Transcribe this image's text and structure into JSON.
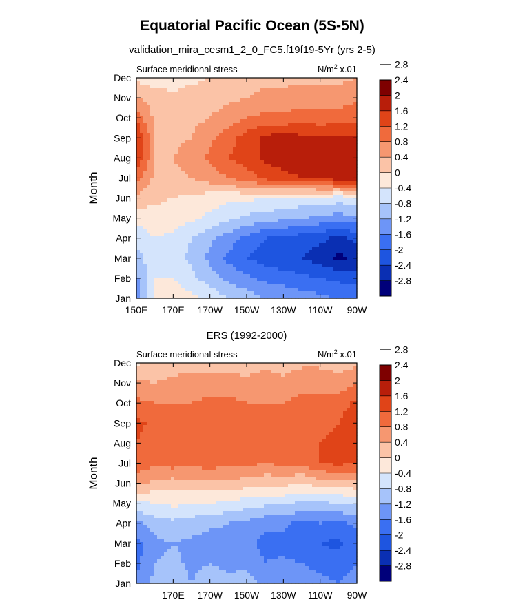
{
  "title": "Equatorial Pacific Ocean (5S-5N)",
  "colors": [
    "#00007a",
    "#0a2fb3",
    "#1e55e0",
    "#3a6ff2",
    "#6d95f7",
    "#a6c3fa",
    "#d4e4fc",
    "#fde8da",
    "#fbc3a7",
    "#f69770",
    "#f06a3c",
    "#e04418",
    "#b81e0a",
    "#7e0000"
  ],
  "colorbar_labels": [
    "-2.8",
    "-2.4",
    "-2",
    "-1.6",
    "-1.2",
    "-0.8",
    "-0.4",
    "0",
    "0.4",
    "0.8",
    "1.2",
    "1.6",
    "2",
    "2.4",
    "2.8"
  ],
  "chart_data": [
    {
      "type": "heatmap",
      "title": "validation_mira_cesm1_2_0_FC5.f19f19-5Yr (yrs 2-5)",
      "left_string": "Surface meridional stress",
      "units_base": "N/m",
      "units_sup": "2",
      "units_suffix": " x.01",
      "ylabel": "Month",
      "xlabel": "",
      "x_tick_labels": [
        "150E",
        "170E",
        "170W",
        "150W",
        "130W",
        "110W",
        "90W"
      ],
      "y_tick_labels": [
        "Jan",
        "Feb",
        "Mar",
        "Apr",
        "May",
        "Jun",
        "Jul",
        "Aug",
        "Sep",
        "Oct",
        "Nov",
        "Dec"
      ],
      "x_longitudes": [
        150,
        160,
        170,
        180,
        190,
        200,
        210,
        220,
        230,
        240,
        250,
        260,
        270
      ],
      "y_months": [
        "Jan",
        "Feb",
        "Mar",
        "Apr",
        "May",
        "Jun",
        "Jul",
        "Aug",
        "Sep",
        "Oct",
        "Nov",
        "Dec"
      ],
      "levels": [
        -2.8,
        -2.4,
        -2.0,
        -1.6,
        -1.2,
        -0.8,
        -0.4,
        0,
        0.4,
        0.8,
        1.2,
        1.6,
        2.0,
        2.4,
        2.8
      ],
      "values": [
        [
          -1.4,
          -0.3,
          -0.2,
          -0.3,
          -0.5,
          -0.8,
          -1.0,
          -1.2,
          -1.3,
          -1.4,
          -1.5,
          -1.6,
          -1.7
        ],
        [
          -1.3,
          -0.4,
          -0.4,
          -0.7,
          -1.0,
          -1.3,
          -1.5,
          -1.7,
          -1.8,
          -1.9,
          -2.0,
          -2.1,
          -2.2
        ],
        [
          -1.0,
          -0.5,
          -0.6,
          -0.9,
          -1.3,
          -1.7,
          -2.0,
          -2.2,
          -2.3,
          -2.4,
          -2.6,
          -2.9,
          -2.7
        ],
        [
          -0.6,
          -0.4,
          -0.5,
          -0.8,
          -1.1,
          -1.4,
          -1.7,
          -2.0,
          -2.1,
          -2.2,
          -2.3,
          -2.5,
          -2.3
        ],
        [
          -0.3,
          -0.2,
          -0.2,
          -0.3,
          -0.5,
          -0.7,
          -0.9,
          -1.0,
          -1.1,
          -1.2,
          -1.3,
          -1.4,
          -1.3
        ],
        [
          0.3,
          0.1,
          0.0,
          -0.1,
          -0.2,
          -0.3,
          -0.3,
          -0.4,
          -0.4,
          -0.5,
          -0.5,
          -0.6,
          -0.5
        ],
        [
          1.0,
          0.3,
          0.3,
          0.4,
          0.6,
          0.8,
          1.0,
          1.3,
          1.5,
          1.6,
          1.7,
          1.8,
          1.8
        ],
        [
          1.6,
          0.4,
          0.4,
          0.6,
          0.9,
          1.2,
          1.4,
          1.7,
          1.8,
          1.8,
          1.8,
          1.7,
          1.6
        ],
        [
          1.7,
          0.4,
          0.3,
          0.4,
          0.7,
          1.0,
          1.4,
          1.7,
          1.8,
          1.7,
          1.6,
          1.7,
          1.6
        ],
        [
          1.1,
          0.3,
          0.2,
          0.3,
          0.4,
          0.6,
          0.8,
          0.9,
          0.9,
          1.0,
          1.0,
          1.0,
          1.1
        ],
        [
          0.4,
          0.2,
          0.1,
          0.2,
          0.2,
          0.3,
          0.4,
          0.5,
          0.5,
          0.6,
          0.6,
          0.6,
          0.7
        ],
        [
          -0.1,
          -0.2,
          -0.2,
          -0.1,
          0.0,
          0.1,
          0.2,
          0.3,
          0.3,
          0.3,
          0.3,
          0.3,
          0.4
        ]
      ]
    },
    {
      "type": "heatmap",
      "title": "ERS (1992-2000)",
      "left_string": "Surface meridional stress",
      "units_base": "N/m",
      "units_sup": "2",
      "units_suffix": " x.01",
      "ylabel": "Month",
      "xlabel": "",
      "x_tick_labels": [
        "",
        "170E",
        "170W",
        "150W",
        "130W",
        "110W",
        "90W"
      ],
      "y_tick_labels": [
        "Jan",
        "Feb",
        "Mar",
        "Apr",
        "May",
        "Jun",
        "Jul",
        "Aug",
        "Sep",
        "Oct",
        "Nov",
        "Dec"
      ],
      "x_longitudes": [
        150,
        160,
        170,
        180,
        190,
        200,
        210,
        220,
        230,
        240,
        250,
        260,
        270
      ],
      "y_months": [
        "Jan",
        "Feb",
        "Mar",
        "Apr",
        "May",
        "Jun",
        "Jul",
        "Aug",
        "Sep",
        "Oct",
        "Nov",
        "Dec"
      ],
      "levels": [
        -2.8,
        -2.4,
        -2.0,
        -1.6,
        -1.2,
        -0.8,
        -0.4,
        0,
        0.4,
        0.8,
        1.2,
        1.6,
        2.0,
        2.4,
        2.8
      ],
      "values": [
        [
          -1.5,
          -1.1,
          -0.9,
          -1.2,
          -1.0,
          -1.1,
          -1.0,
          -1.3,
          -1.2,
          -1.4,
          -1.5,
          -1.6,
          -1.4
        ],
        [
          -1.7,
          -1.2,
          -1.1,
          -1.3,
          -1.2,
          -1.3,
          -1.3,
          -1.6,
          -1.5,
          -1.6,
          -1.7,
          -1.8,
          -1.6
        ],
        [
          -1.8,
          -1.3,
          -1.2,
          -1.3,
          -1.4,
          -1.4,
          -1.5,
          -1.7,
          -1.8,
          -1.9,
          -2.0,
          -2.1,
          -1.8
        ],
        [
          -1.3,
          -1.0,
          -0.9,
          -1.0,
          -1.1,
          -1.2,
          -1.3,
          -1.5,
          -1.5,
          -1.7,
          -1.6,
          -1.7,
          -1.5
        ],
        [
          -0.5,
          -0.4,
          -0.3,
          -0.4,
          -0.4,
          -0.5,
          -0.6,
          -0.7,
          -0.7,
          -0.9,
          -0.9,
          -0.8,
          -0.7
        ],
        [
          0.5,
          0.3,
          0.2,
          0.3,
          0.3,
          0.3,
          0.2,
          0.1,
          0.1,
          0.0,
          0.2,
          0.2,
          0.3
        ],
        [
          1.1,
          0.9,
          1.0,
          0.9,
          1.0,
          0.9,
          0.9,
          0.8,
          0.9,
          0.9,
          1.2,
          1.3,
          1.2
        ],
        [
          1.2,
          1.0,
          1.1,
          1.1,
          1.1,
          1.0,
          1.0,
          0.9,
          1.0,
          1.0,
          1.2,
          1.3,
          1.4
        ],
        [
          1.3,
          1.1,
          1.0,
          1.0,
          1.2,
          1.1,
          1.0,
          1.0,
          0.9,
          1.0,
          1.1,
          1.2,
          1.5
        ],
        [
          0.9,
          0.8,
          0.8,
          0.8,
          0.9,
          0.9,
          0.8,
          0.8,
          0.8,
          0.9,
          0.9,
          1.0,
          1.3
        ],
        [
          0.5,
          0.4,
          0.5,
          0.6,
          0.6,
          0.6,
          0.5,
          0.6,
          0.5,
          0.7,
          0.7,
          0.6,
          0.8
        ],
        [
          -0.1,
          0.1,
          0.2,
          0.2,
          0.2,
          0.2,
          0.2,
          0.3,
          0.2,
          0.3,
          0.3,
          0.2,
          0.3
        ]
      ]
    }
  ]
}
